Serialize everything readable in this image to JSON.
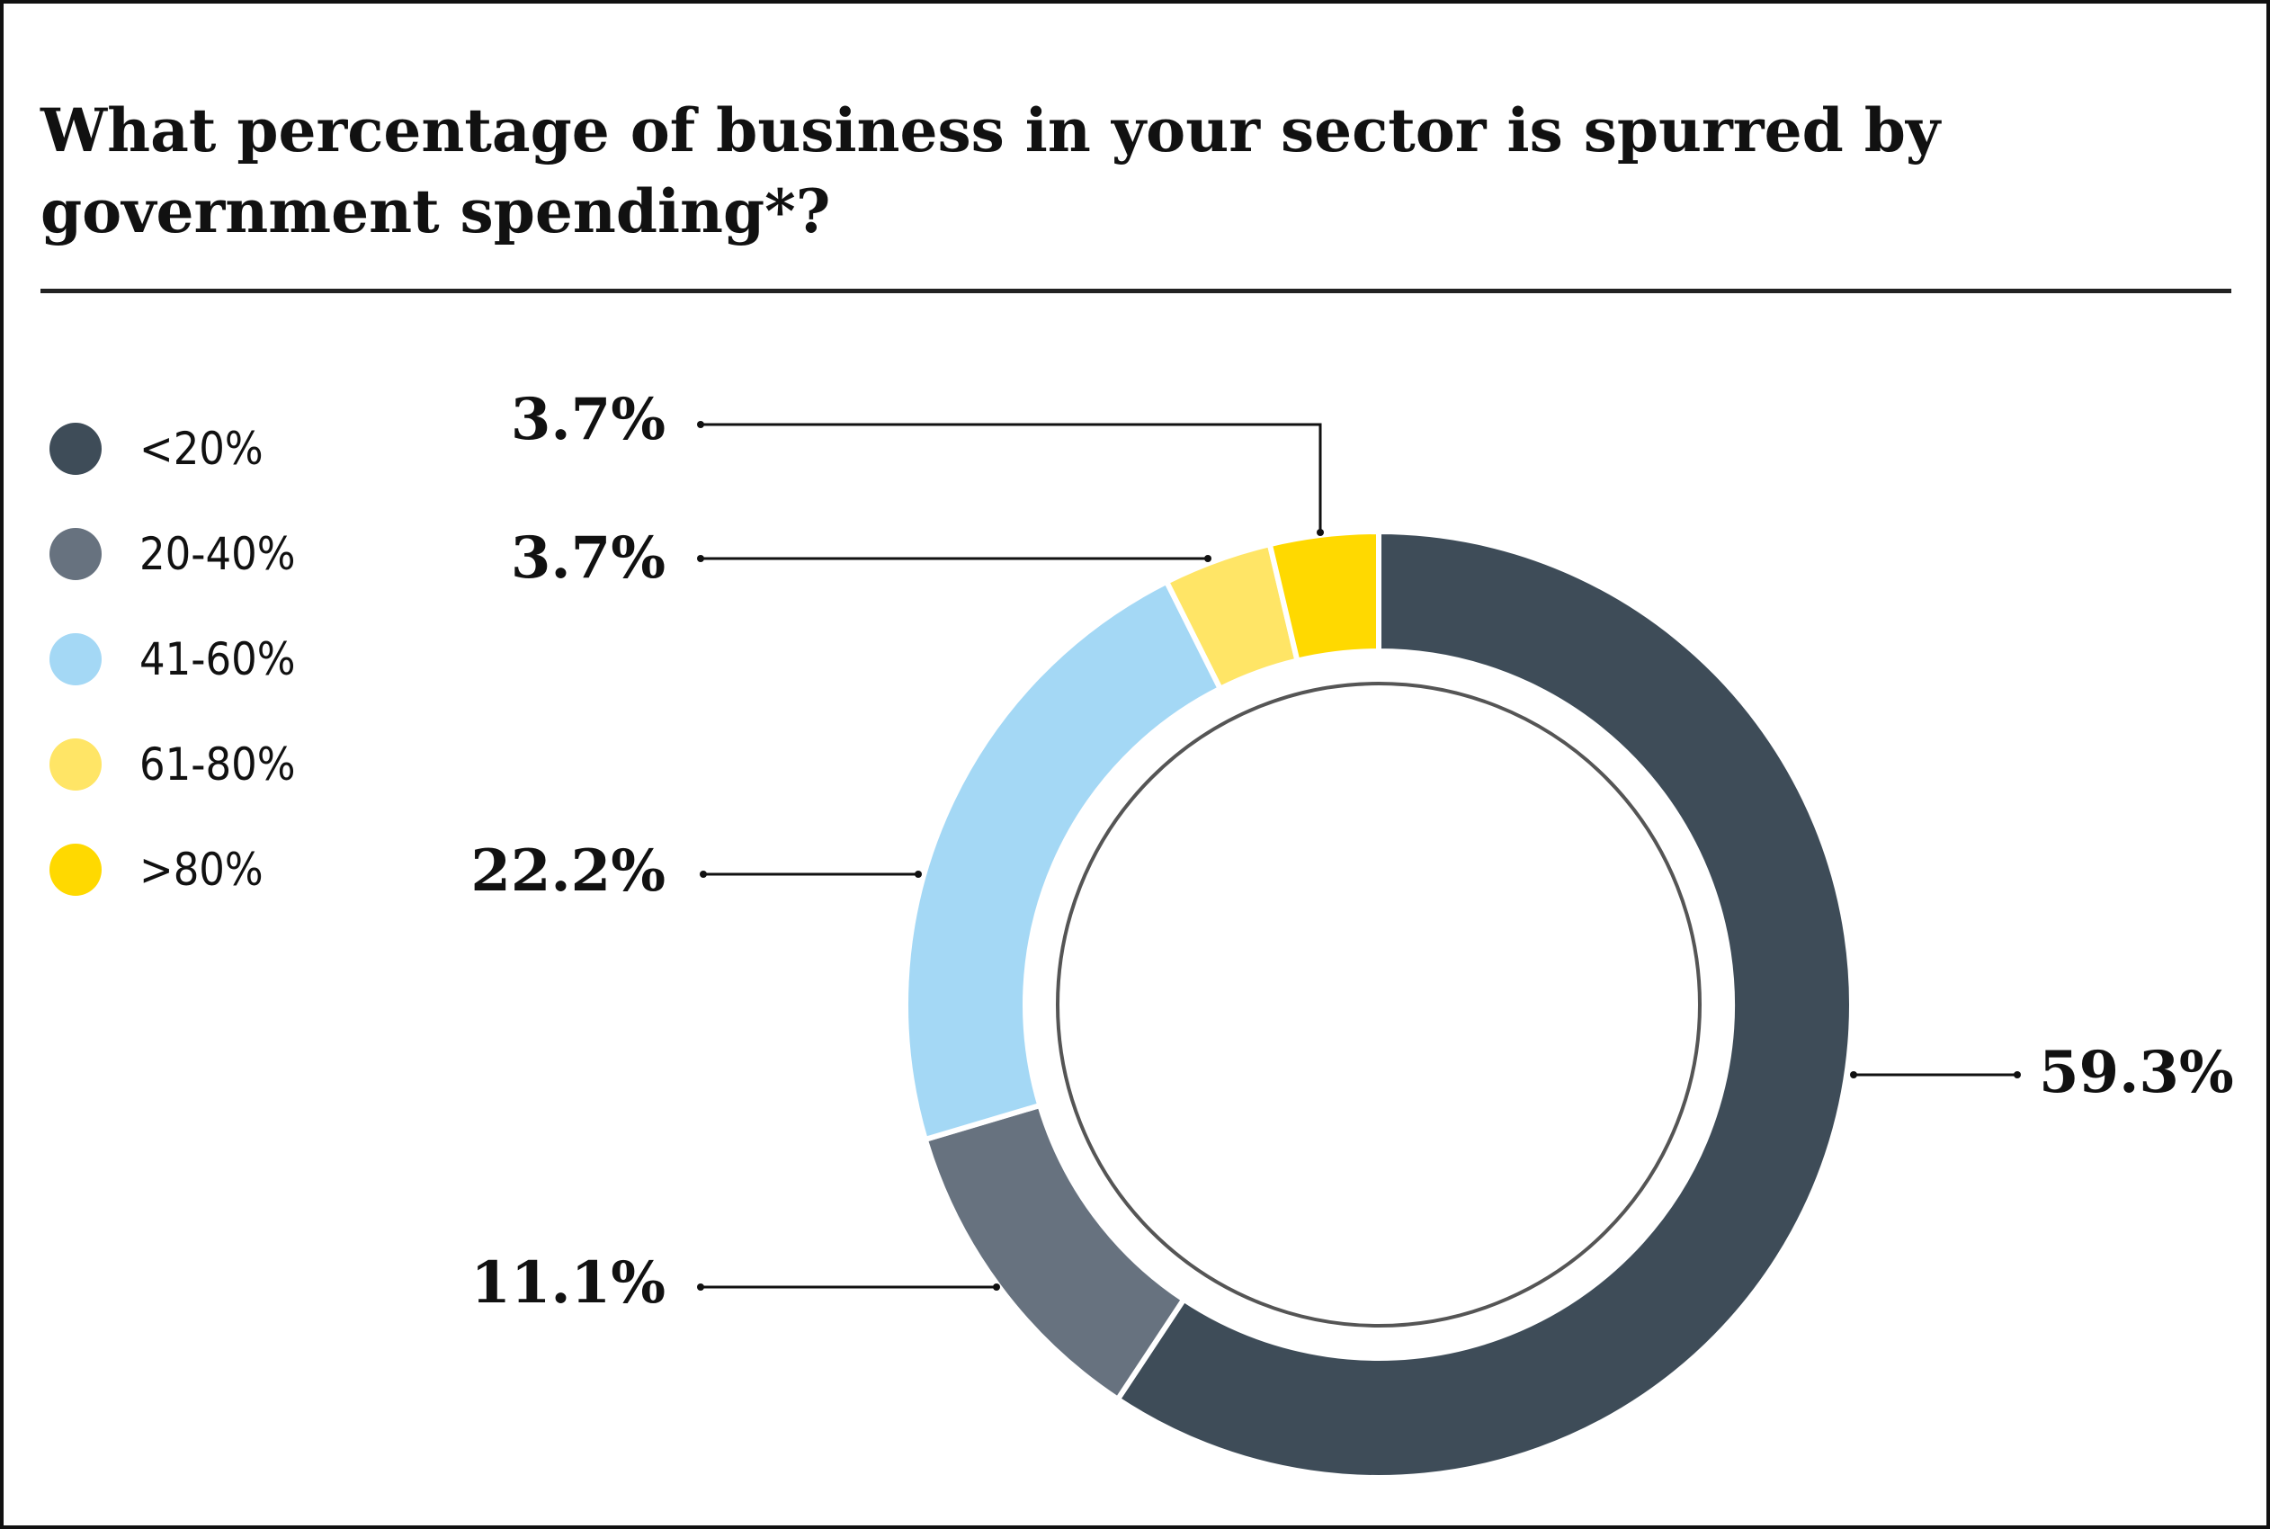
{
  "chart_data": {
    "type": "pie",
    "variant": "donut",
    "title": "What percentage of business in your sector is spurred by government spending*?",
    "categories": [
      "<20%",
      "20-40%",
      "41-60%",
      "61-80%",
      ">80%"
    ],
    "values": [
      59.3,
      11.1,
      22.2,
      3.7,
      3.7
    ],
    "labels": [
      "59.3%",
      "11.1%",
      "22.2%",
      "3.7%",
      "3.7%"
    ],
    "colors": [
      "#3e4c58",
      "#67727f",
      "#a4d8f5",
      "#ffe566",
      "#ffd900"
    ],
    "legend_placement": "left"
  }
}
